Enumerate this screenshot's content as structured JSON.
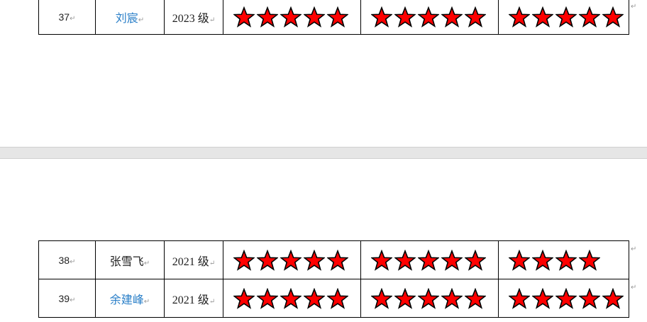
{
  "colors": {
    "star_fill": "#ff0000",
    "star_stroke": "#000000",
    "name_link": "#2a7fc8"
  },
  "paragraph_mark": "↵",
  "page1": {
    "rows": [
      {
        "no": "37",
        "name": "刘宸",
        "name_blue": true,
        "grade": "2023 级",
        "ratings": [
          5,
          5,
          5
        ]
      }
    ]
  },
  "page2": {
    "rows": [
      {
        "no": "38",
        "name": "张雪飞",
        "name_blue": false,
        "grade": "2021 级",
        "ratings": [
          5,
          5,
          4
        ]
      },
      {
        "no": "39",
        "name": "余建峰",
        "name_blue": true,
        "grade": "2021 级",
        "ratings": [
          5,
          5,
          5
        ]
      }
    ]
  }
}
